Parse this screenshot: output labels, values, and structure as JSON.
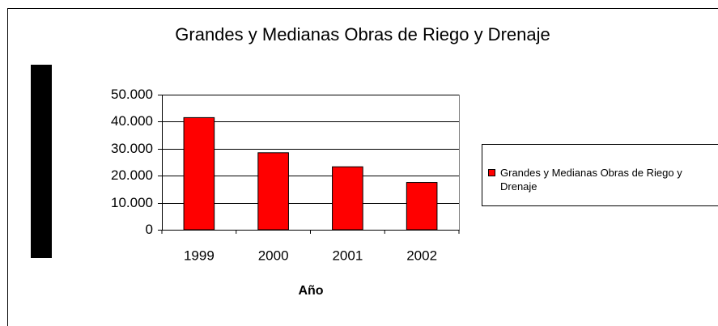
{
  "chart_data": {
    "type": "bar",
    "title": "Grandes y Medianas Obras de Riego y Drenaje",
    "x_label": "Año",
    "categories": [
      "1999",
      "2000",
      "2001",
      "2002"
    ],
    "series": [
      {
        "name": "Grandes y Medianas Obras de Riego y Drenaje",
        "color": "#ff0000",
        "values": [
          41500,
          28500,
          23300,
          17500
        ]
      }
    ],
    "ylim": [
      0,
      50000
    ],
    "yticks": [
      0,
      {
        "value": 10000,
        "label": "10.000"
      },
      {
        "value": 20000,
        "label": "20.000"
      },
      {
        "value": 30000,
        "label": "30.000"
      },
      {
        "value": 40000,
        "label": "40.000"
      },
      {
        "value": 50000,
        "label": "50.000"
      }
    ],
    "grid": true,
    "legend": "right"
  }
}
